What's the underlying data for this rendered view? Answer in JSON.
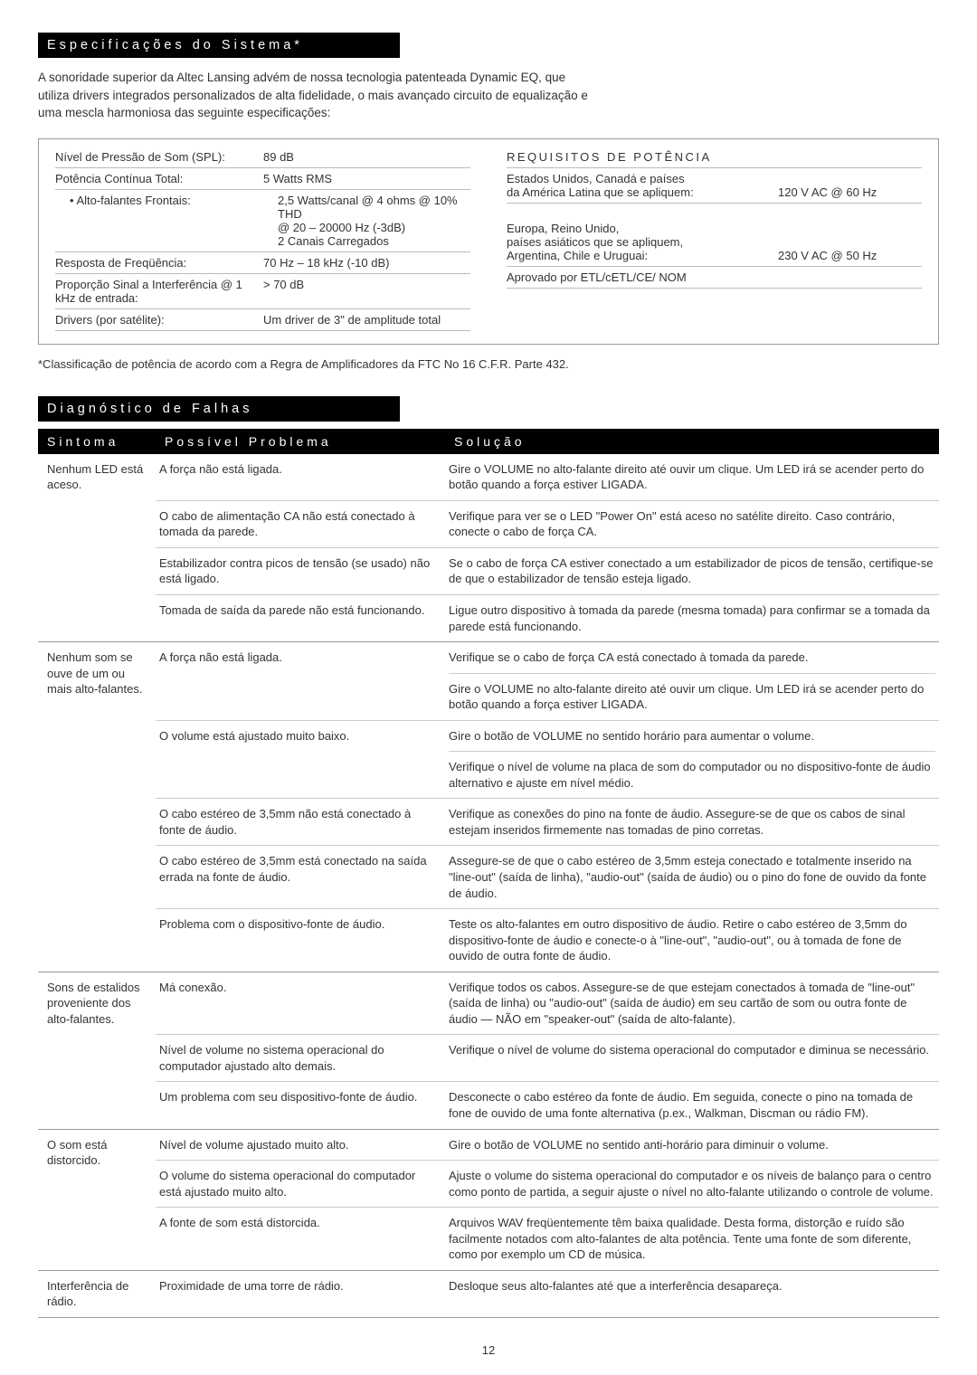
{
  "sections": {
    "spec_title": "Especificações do Sistema*",
    "intro": "A sonoridade superior da Altec Lansing advém de nossa tecnologia patenteada Dynamic EQ, que utiliza drivers integrados personalizados de alta fidelidade, o mais avançado circuito de equalização e uma mescla harmoniosa das seguinte especificações:",
    "specs": [
      {
        "label": "Nível de Pressão de Som (SPL):",
        "value": "89 dB"
      },
      {
        "label": "Potência Contínua Total:",
        "value": "5 Watts RMS"
      },
      {
        "label": "• Alto-falantes Frontais:",
        "value": "2,5 Watts/canal @ 4 ohms @ 10% THD @ 20 – 20000 Hz (-3dB)  2 Canais Carregados",
        "indent": true,
        "noborder": true
      },
      {
        "label": "Resposta de Freqüência:",
        "value": "70 Hz – 18 kHz (-10 dB)",
        "topborder": true
      },
      {
        "label": "Proporção Sinal a Interferência @ 1 kHz de entrada:",
        "value": "> 70 dB",
        "twoLine": true
      },
      {
        "label": "Drivers (por satélite):",
        "value": "Um driver de 3\" de amplitude total"
      }
    ],
    "power_title": "REQUISITOS DE POTÊNCIA",
    "power": [
      {
        "label": "Estados Unidos, Canadá e países da América Latina que se apliquem:",
        "value": "120 V AC @ 60 Hz"
      },
      {
        "label": "Europa, Reino Unido, países asiáticos que se apliquem, Argentina, Chile e Uruguai:",
        "value": "230 V AC @ 50 Hz",
        "mt": true
      },
      {
        "label": "Aprovado por ETL/cETL/CE/ NOM",
        "value": ""
      }
    ],
    "footnote": "*Classificação de potência de acordo com a Regra de Amplificadores da FTC No 16 C.F.R. Parte 432.",
    "diag_title": "Diagnóstico de Falhas",
    "headers": {
      "sym": "Sintoma",
      "prob": "Possível Problema",
      "sol": "Solução"
    },
    "diag": [
      {
        "symptom": "Nenhum LED está aceso.",
        "rows": [
          {
            "prob": "A força não está ligada.",
            "sol": "Gire o VOLUME no alto-falante direito até ouvir um clique. Um LED irá se acender perto do botão quando a força estiver LIGADA."
          },
          {
            "prob": "O cabo de alimentação CA não está conectado à tomada da parede.",
            "sol": "Verifique para ver se o LED \"Power On\" está aceso no satélite direito. Caso contrário, conecte o cabo de força CA."
          },
          {
            "prob": "Estabilizador contra picos de tensão (se usado) não está ligado.",
            "sol": "Se o cabo de força CA estiver conectado a um estabilizador de picos de tensão, certifique-se de que o estabilizador de tensão esteja ligado."
          },
          {
            "prob": "Tomada de saída da parede não está funcionando.",
            "sol": "Ligue outro dispositivo à tomada da parede (mesma tomada) para confirmar se a tomada da parede está funcionando."
          }
        ]
      },
      {
        "symptom": "Nenhum som se ouve de um ou mais alto-falantes.",
        "rows": [
          {
            "prob": "A força não está ligada.",
            "sol": "Verifique se o cabo de força CA está conectado à tomada da parede.",
            "sol2": "Gire o VOLUME no alto-falante direito até ouvir um clique. Um LED irá se acender perto do botão quando a força estiver LIGADA."
          },
          {
            "prob": "O volume está ajustado muito baixo.",
            "sol": "Gire o botão de VOLUME no sentido horário para aumentar o volume.",
            "sol2": "Verifique o nível de volume na placa de som do computador ou no dispositivo-fonte de áudio alternativo e ajuste em nível médio."
          },
          {
            "prob": "O cabo estéreo de 3,5mm não está conectado à fonte de áudio.",
            "sol": "Verifique as conexões do pino na fonte de áudio. Assegure-se de que os cabos de sinal estejam inseridos firmemente nas tomadas de pino corretas."
          },
          {
            "prob": "O cabo estéreo de 3,5mm está conectado na saída errada na fonte de áudio.",
            "sol": "Assegure-se de que o cabo estéreo de 3,5mm esteja conectado e totalmente inserido na \"line-out\" (saída de linha), \"audio-out\" (saída de áudio) ou o pino do fone de ouvido da fonte de áudio."
          },
          {
            "prob": "Problema com o dispositivo-fonte de áudio.",
            "sol": "Teste os alto-falantes em outro dispositivo de áudio. Retire o cabo estéreo de 3,5mm do dispositivo-fonte de áudio e conecte-o à \"line-out\", \"audio-out\", ou à tomada de fone de ouvido de outra fonte de áudio."
          }
        ]
      },
      {
        "symptom": "Sons de estalidos proveniente dos alto-falantes.",
        "rows": [
          {
            "prob": "Má conexão.",
            "sol": "Verifique todos os cabos. Assegure-se de que estejam conectados à tomada de \"line-out\" (saída de linha) ou \"audio-out\" (saída de áudio) em seu cartão de som ou outra fonte de áudio — NÃO em \"speaker-out\" (saída de alto-falante)."
          },
          {
            "prob": "Nível de volume no sistema operacional do computador ajustado alto demais.",
            "sol": "Verifique o nível de volume do sistema operacional do computador e diminua se necessário."
          },
          {
            "prob": "Um problema com seu dispositivo-fonte de áudio.",
            "sol": "Desconecte o cabo estéreo da fonte de áudio. Em seguida, conecte o pino na tomada de fone de ouvido de uma fonte alternativa (p.ex., Walkman, Discman ou rádio FM)."
          }
        ]
      },
      {
        "symptom": "O som está distorcido.",
        "rows": [
          {
            "prob": "Nível de volume ajustado muito alto.",
            "sol": "Gire o botão de VOLUME no sentido anti-horário para diminuir o volume."
          },
          {
            "prob": "O volume do sistema operacional do computador está ajustado muito alto.",
            "sol": "Ajuste o volume do sistema operacional do computador e os níveis de balanço para o centro como ponto de partida, a seguir ajuste o nível no alto-falante utilizando o controle de volume."
          },
          {
            "prob": "A fonte de som está distorcida.",
            "sol": "Arquivos WAV freqüentemente têm baixa qualidade. Desta forma, distorção e ruído são facilmente notados com alto-falantes de alta potência. Tente uma fonte de som diferente, como por exemplo um CD de música."
          }
        ]
      },
      {
        "symptom": "Interferência de rádio.",
        "rows": [
          {
            "prob": "Proximidade de uma torre de rádio.",
            "sol": "Desloque seus alto-falantes até que a interferência desapareça."
          }
        ]
      }
    ],
    "page": "12"
  }
}
